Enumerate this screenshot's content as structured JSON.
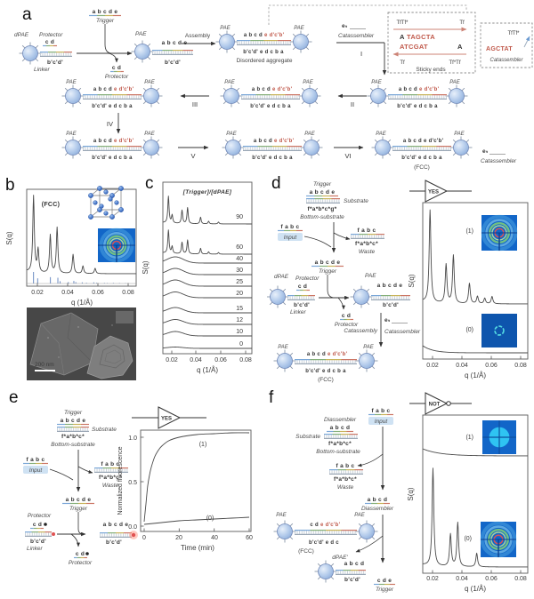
{
  "panels": {
    "a": {
      "letter": "a",
      "assembly_label": "Assembly",
      "disordered_label": "Disordered aggregate",
      "steps": {
        "i": "I",
        "ii": "II",
        "iii": "III",
        "iv": "IV",
        "v": "V",
        "vi": "VI"
      },
      "sticky_box": {
        "top_left": "TfTf*",
        "top_right": "Tf",
        "bottom_left": "Tf",
        "bottom_right": "Tf*Tf",
        "seq_top_black": "A",
        "seq_top_red": "TAGCTA",
        "seq_bottom_red": "ATCGAT",
        "seq_bottom_black": "A",
        "caption": "Sticky ends"
      },
      "cat_box": {
        "label": "TfTf*",
        "seq": "AGCTAT",
        "caption": "Catassembler"
      }
    },
    "b": {
      "letter": "b",
      "scalebar": "200 nm"
    },
    "c": {
      "letter": "c"
    },
    "d": {
      "letter": "d",
      "catassembly_label": "Catassembly"
    },
    "e": {
      "letter": "e"
    },
    "f": {
      "letter": "f",
      "diassembler_label": "Diassembler",
      "dpae_prime": "dPAE'"
    }
  },
  "shared": {
    "pae": "PAE",
    "dpae": "dPAE",
    "trigger": "Trigger",
    "protector": "Protector",
    "linker": "Linker",
    "substrate": "Substrate",
    "bottom_substrate": "Bottom-substrate",
    "input": "Input",
    "waste": "Waste",
    "catassembler": "Catassembler",
    "et": "eₜ",
    "fcc": "(FCC)"
  },
  "seqs": {
    "abcde": "a b c d e",
    "cd": "c d",
    "bcd": "b'c'd'",
    "fabc": "f a b c",
    "fstar": "f*a*b*c*",
    "fstar_g": "f*a*b*c*g*",
    "abcd": "a b c d",
    "cde": "c d e",
    "dimer_top_a": "a b c d",
    "dimer_top_b": "e d'c'b'",
    "dimer_bottom": "b'c'd' e d c b a",
    "f_dimer_top_a": "c d",
    "f_dimer_top_b": "e d'c'b'",
    "f_dimer_bottom": "b'c'd' e d c"
  },
  "chart_data": [
    {
      "id": "b-structure-factor",
      "type": "line",
      "title": "(FCC)",
      "xlabel": "q (1/Å)",
      "ylabel": "S(q)",
      "xlim": [
        0.013,
        0.085
      ],
      "xticks": [
        "0.02",
        "0.04",
        "0.06",
        "0.08"
      ],
      "peaks": [
        {
          "q": 0.0175,
          "h": 1.0
        },
        {
          "q": 0.0205,
          "h": 0.3
        },
        {
          "q": 0.0285,
          "h": 0.5
        },
        {
          "q": 0.033,
          "h": 0.6
        },
        {
          "q": 0.0435,
          "h": 0.25
        },
        {
          "q": 0.05,
          "h": 0.1
        },
        {
          "q": 0.058,
          "h": 0.07
        }
      ],
      "bragg_sticks": [
        {
          "q": 0.0175,
          "h": 1.0
        },
        {
          "q": 0.0202,
          "h": 0.45
        },
        {
          "q": 0.0286,
          "h": 0.55
        },
        {
          "q": 0.0335,
          "h": 0.5
        },
        {
          "q": 0.035,
          "h": 0.2
        },
        {
          "q": 0.0404,
          "h": 0.12
        },
        {
          "q": 0.044,
          "h": 0.22
        },
        {
          "q": 0.0453,
          "h": 0.12
        },
        {
          "q": 0.0495,
          "h": 0.1
        },
        {
          "q": 0.0523,
          "h": 0.06
        },
        {
          "q": 0.0571,
          "h": 0.1
        },
        {
          "q": 0.059,
          "h": 0.06
        },
        {
          "q": 0.0641,
          "h": 0.05
        },
        {
          "q": 0.066,
          "h": 0.04
        },
        {
          "q": 0.07,
          "h": 0.05
        },
        {
          "q": 0.074,
          "h": 0.04
        },
        {
          "q": 0.078,
          "h": 0.03
        }
      ]
    },
    {
      "id": "c-trigger-titration",
      "type": "line",
      "title": "[Trigger]/[dPAE]",
      "xlabel": "q (1/Å)",
      "ylabel": "S(q)",
      "xticks": [
        "0.02",
        "0.04",
        "0.06",
        "0.08"
      ],
      "ratios": [
        "90",
        "60",
        "40",
        "30",
        "25",
        "20",
        "15",
        "12",
        "10",
        "0"
      ],
      "crystalline_ratios": [
        "90",
        "60"
      ]
    },
    {
      "id": "d-yes-gate-saxs",
      "type": "line",
      "gate": "YES",
      "xlabel": "q (1/Å)",
      "ylabel": "S(q)",
      "xticks": [
        "0.02",
        "0.04",
        "0.06",
        "0.08"
      ],
      "curves": [
        {
          "label": "(1)",
          "state": "crystalline",
          "peaks": [
            {
              "q": 0.018,
              "h": 1.0
            },
            {
              "q": 0.029,
              "h": 0.42
            },
            {
              "q": 0.034,
              "h": 0.52
            },
            {
              "q": 0.045,
              "h": 0.22
            },
            {
              "q": 0.0505,
              "h": 0.08
            },
            {
              "q": 0.0555,
              "h": 0.06
            },
            {
              "q": 0.0605,
              "h": 0.08
            }
          ]
        },
        {
          "label": "(0)",
          "state": "disordered"
        }
      ]
    },
    {
      "id": "e-fluorescence-kinetics",
      "type": "line",
      "gate": "YES",
      "xlabel": "Time (min)",
      "ylabel": "Normalized fluorescence",
      "xticks": [
        "0",
        "20",
        "40",
        "60"
      ],
      "yticks": [
        "0.0",
        "0.5",
        "1.0"
      ],
      "series": [
        {
          "name": "(1)",
          "x": [
            0,
            1,
            2,
            3,
            4,
            6,
            8,
            10,
            14,
            20,
            30,
            40,
            50,
            60
          ],
          "y": [
            0.05,
            0.25,
            0.45,
            0.57,
            0.66,
            0.78,
            0.85,
            0.9,
            0.96,
            1.0,
            1.03,
            1.04,
            1.05,
            1.05
          ]
        },
        {
          "name": "(0)",
          "x": [
            0,
            10,
            20,
            30,
            40,
            50,
            60
          ],
          "y": [
            0.02,
            0.04,
            0.06,
            0.07,
            0.08,
            0.09,
            0.1
          ]
        }
      ]
    },
    {
      "id": "f-not-gate-saxs",
      "type": "line",
      "gate": "NOT",
      "xlabel": "q (1/Å)",
      "ylabel": "S(q)",
      "xticks": [
        "0.02",
        "0.04",
        "0.06",
        "0.08"
      ],
      "curves": [
        {
          "label": "(1)",
          "state": "disordered"
        },
        {
          "label": "(0)",
          "state": "crystalline",
          "peaks": [
            {
              "q": 0.02,
              "h": 1.0
            },
            {
              "q": 0.032,
              "h": 0.33
            },
            {
              "q": 0.037,
              "h": 0.45
            },
            {
              "q": 0.05,
              "h": 0.14
            }
          ]
        }
      ]
    }
  ]
}
